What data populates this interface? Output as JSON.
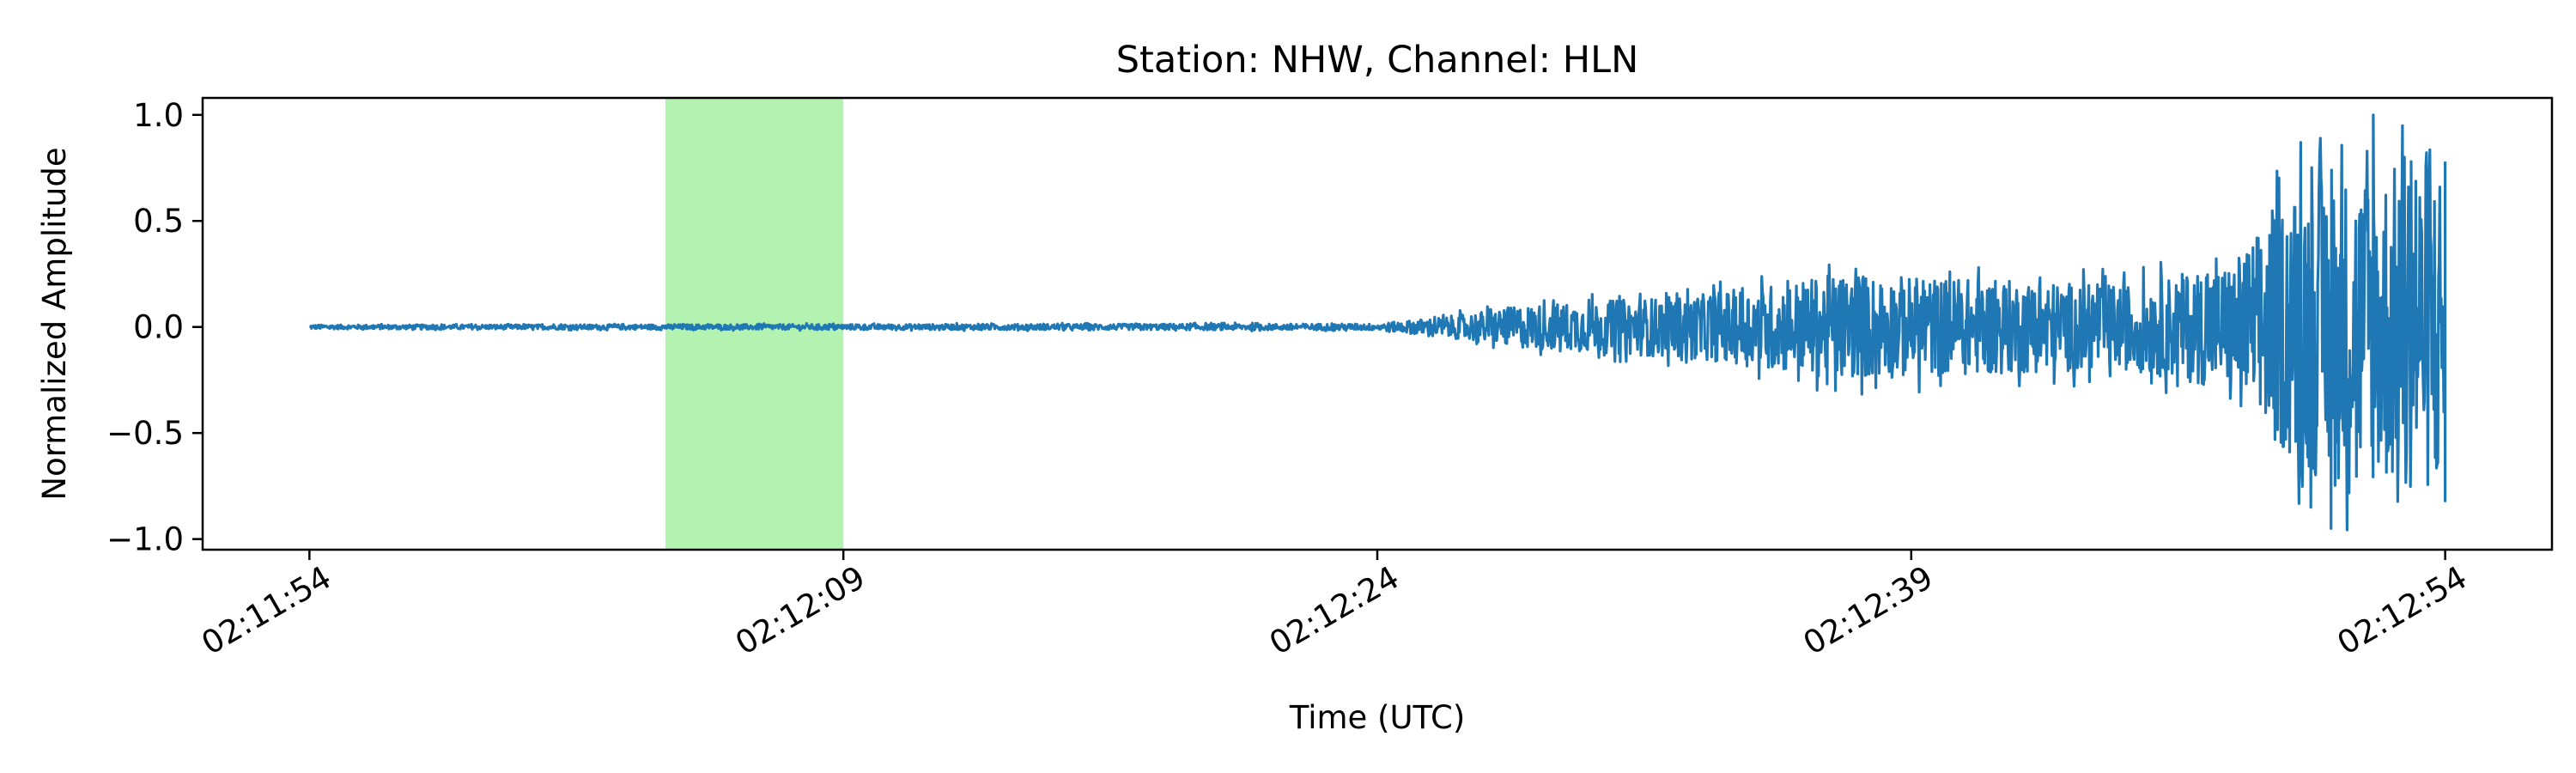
{
  "chart_data": {
    "type": "line",
    "title": "Station: NHW, Channel: HLN",
    "xlabel": "Time (UTC)",
    "ylabel": "Normalized Amplitude",
    "xlim": [
      "02:11:51",
      "02:12:57"
    ],
    "ylim": [
      -1.05,
      1.08
    ],
    "x_ticks": [
      "02:11:54",
      "02:12:09",
      "02:12:24",
      "02:12:39",
      "02:12:54"
    ],
    "y_ticks": [
      {
        "value": 1.0,
        "label": "1.0"
      },
      {
        "value": 0.5,
        "label": "0.5"
      },
      {
        "value": 0.0,
        "label": "0.0"
      },
      {
        "value": -0.5,
        "label": "−0.5"
      },
      {
        "value": -1.0,
        "label": "−1.0"
      }
    ],
    "highlight_band": {
      "start": "02:12:04",
      "end": "02:12:09",
      "color": "#b3f2b0"
    },
    "grid": false,
    "series": [
      {
        "color": "#1f77b4",
        "time_range": [
          "02:11:54",
          "02:12:54"
        ],
        "envelope": [
          {
            "t": "02:11:54",
            "amp": 0.01
          },
          {
            "t": "02:12:24",
            "amp": 0.015
          },
          {
            "t": "02:12:26",
            "amp": 0.05
          },
          {
            "t": "02:12:28",
            "amp": 0.1
          },
          {
            "t": "02:12:33",
            "amp": 0.15
          },
          {
            "t": "02:12:37",
            "amp": 0.25
          },
          {
            "t": "02:12:45",
            "amp": 0.2
          },
          {
            "t": "02:12:48",
            "amp": 0.3
          },
          {
            "t": "02:12:50",
            "amp": 0.7
          },
          {
            "t": "02:12:54",
            "amp": 0.8
          }
        ],
        "peaks": [
          {
            "t": "02:12:37",
            "value": -0.3
          },
          {
            "t": "02:12:40",
            "value": 0.26
          },
          {
            "t": "02:12:47",
            "value": -0.25
          },
          {
            "t": "02:12:49",
            "value": -0.53
          },
          {
            "t": "02:12:50",
            "value": -0.85
          },
          {
            "t": "02:12:50",
            "value": 0.87
          },
          {
            "t": "02:12:51",
            "value": -0.95
          },
          {
            "t": "02:12:52",
            "value": 1.0
          },
          {
            "t": "02:12:51",
            "value": 0.74
          },
          {
            "t": "02:12:52",
            "value": 0.6
          },
          {
            "t": "02:12:53",
            "value": 0.78
          },
          {
            "t": "02:12:54",
            "value": -0.82
          },
          {
            "t": "02:12:54",
            "value": 0.78
          }
        ]
      }
    ]
  }
}
